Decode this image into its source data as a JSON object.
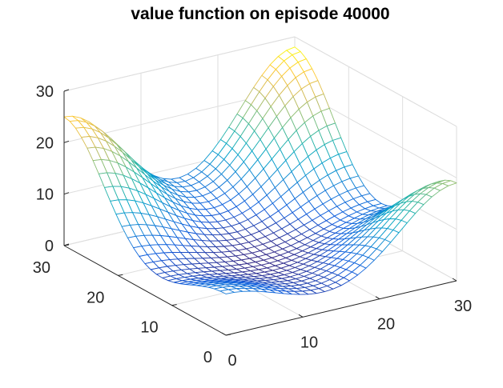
{
  "chart_data": {
    "type": "surface",
    "render": "3d-mesh",
    "title": "value function on episode 40000",
    "xlabel": "",
    "ylabel": "",
    "zlabel": "",
    "xlim": [
      0,
      30
    ],
    "ylim": [
      0,
      30
    ],
    "zlim": [
      0,
      30
    ],
    "xticks": [
      "0",
      "10",
      "20",
      "30"
    ],
    "yticks": [
      "0",
      "10",
      "20",
      "30"
    ],
    "zticks": [
      "0",
      "10",
      "20",
      "30"
    ],
    "grid": true,
    "colormap": "parula",
    "colormap_stops": [
      "#352a87",
      "#0f5cdd",
      "#1481d6",
      "#06a4ca",
      "#2eb7a4",
      "#87bf77",
      "#d1bb59",
      "#fec832",
      "#f9fb0e"
    ],
    "grid_color": "#dedede",
    "axis_color": "#262626",
    "mesh_resolution": [
      29,
      29
    ],
    "surface_model": {
      "description": "value surface with four corner peaks and a central valley, read off the mesh",
      "base": 1.0,
      "peaks": [
        {
          "x": 0,
          "y": 30,
          "z": 24
        },
        {
          "x": 30,
          "y": 30,
          "z": 27
        },
        {
          "x": 30,
          "y": 0,
          "z": 18
        },
        {
          "x": 0,
          "y": 0,
          "z": 7
        }
      ],
      "peak_spread": 7.5
    }
  }
}
